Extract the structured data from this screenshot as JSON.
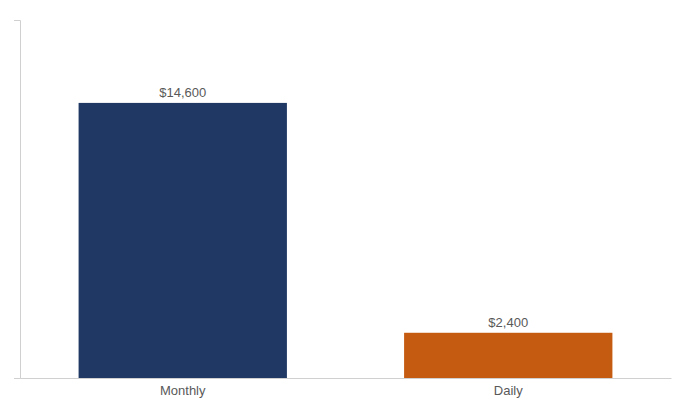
{
  "chart_data": {
    "type": "bar",
    "categories": [
      "Monthly",
      "Daily"
    ],
    "values": [
      14600,
      2400
    ],
    "value_labels": [
      "$14,600",
      "$2,400"
    ],
    "colors": [
      "#1F3864",
      "#C55A11"
    ],
    "ylim": [
      0,
      19000
    ],
    "data_labels": true,
    "tick_labels": "x"
  }
}
